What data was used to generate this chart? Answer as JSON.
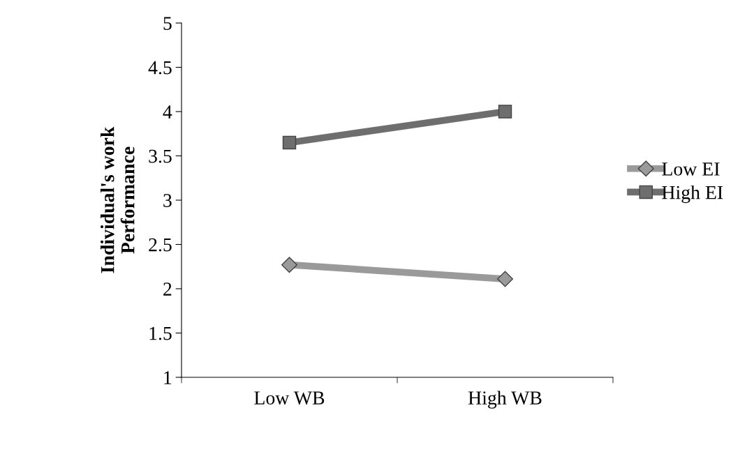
{
  "chart_data": {
    "type": "line",
    "ylabel": "Individual's work\nPerformance",
    "categories": [
      "Low WB",
      "High WB"
    ],
    "series": [
      {
        "name": "Low EI",
        "color": "#9a9a9a",
        "marker": "diamond",
        "values": [
          2.27,
          2.11
        ]
      },
      {
        "name": "High EI",
        "color": "#6e6e6e",
        "marker": "square",
        "values": [
          3.65,
          4.0
        ]
      }
    ],
    "ylim": [
      1,
      5
    ],
    "yticks": [
      1,
      1.5,
      2,
      2.5,
      3,
      3.5,
      4,
      4.5,
      5
    ],
    "grid": false,
    "legend": "right",
    "line_style": "solid"
  }
}
